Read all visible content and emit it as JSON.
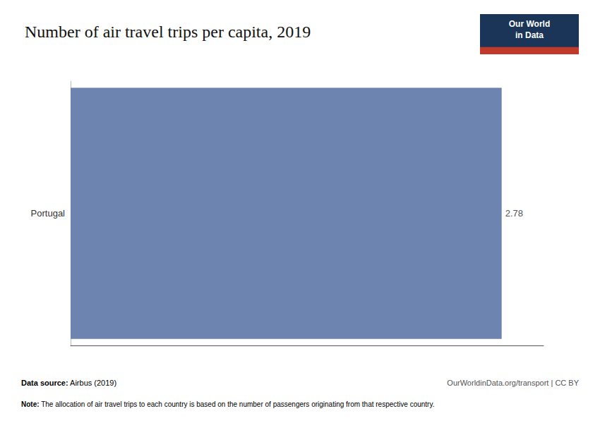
{
  "chart_data": {
    "type": "bar",
    "orientation": "horizontal",
    "title": "Number of air travel trips per capita, 2019",
    "categories": [
      "Portugal"
    ],
    "values": [
      2.78
    ],
    "color": "#6e84b0",
    "xlim": [
      0,
      3.05
    ],
    "data_labels": true,
    "tick_labels": "y",
    "grid": false,
    "annotations": [
      "Data source: Airbus (2019)",
      "Note: The allocation of air travel trips to each country is based on the number of passengers originating from that respective country.",
      "OurWorldinData.org/transport | CC BY",
      "Our World",
      "in Data"
    ]
  }
}
